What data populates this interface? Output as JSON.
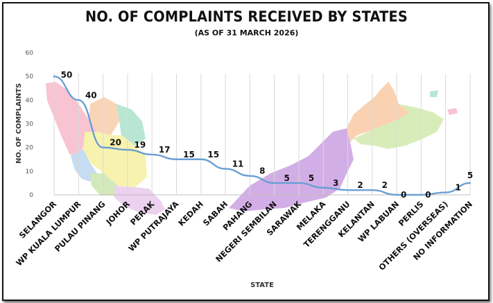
{
  "chart_data": {
    "type": "line",
    "title": "NO. OF COMPLAINTS RECEIVED BY STATES",
    "subtitle": "(AS OF 31 MARCH 2026)",
    "xlabel": "STATE",
    "ylabel": "NO. OF COMPLAINTS",
    "ylim": [
      0,
      60
    ],
    "yticks": [
      0,
      10,
      20,
      30,
      40,
      50,
      60
    ],
    "grid": "vertical",
    "categories": [
      "SELANGOR",
      "WP KUALA LUMPUR",
      "PULAU PINANG",
      "JOHOR",
      "PERAK",
      "WP PUTRAJAYA",
      "KEDAH",
      "SABAH",
      "PAHANG",
      "NEGERI SEMBILAN",
      "SARAWAK",
      "MELAKA",
      "TERENGGANU",
      "KELANTAN",
      "WP LABUAN",
      "PERLIS",
      "OTHERS (OVERSEAS)",
      "NO INFORMATION"
    ],
    "series": [
      {
        "name": "Complaints",
        "color": "#6a9fd4",
        "values": [
          50,
          40,
          20,
          19,
          17,
          15,
          15,
          11,
          8,
          5,
          5,
          3,
          2,
          2,
          0,
          0,
          1,
          5
        ]
      }
    ]
  },
  "colors": {
    "line": "#6a9fd4",
    "selangor": "#f7b6c8",
    "perak": "#f6ef9a",
    "kedah": "#f8cba6",
    "kelantan": "#a8e0c8",
    "pahang": "#f3ec8e",
    "negeri": "#c8e6a8",
    "johor": "#e8c8ec",
    "sarawak": "#c89ae0",
    "sabah": "#f9c8a0",
    "sabah_east": "#cfe8a8",
    "selangor_w": "#b8d4f0"
  }
}
